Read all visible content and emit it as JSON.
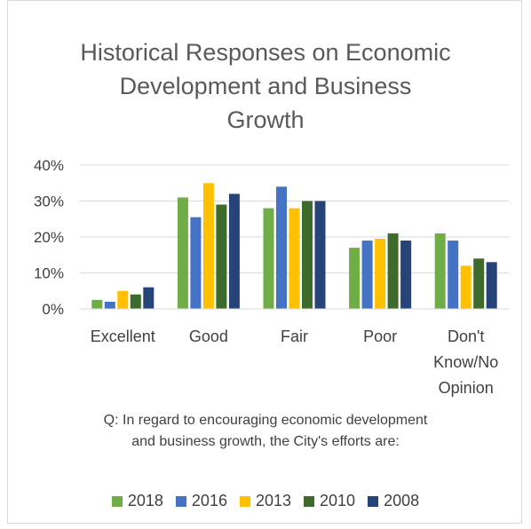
{
  "chart_data": {
    "type": "bar",
    "title": "Historical Responses on Economic\nDevelopment and Business\nGrowth",
    "categories": [
      "Excellent",
      "Good",
      "Fair",
      "Poor",
      "Don't\nKnow/No\nOpinion"
    ],
    "series": [
      {
        "name": "2018",
        "color": "#70ad47",
        "values": [
          2.5,
          31,
          28,
          17,
          21
        ]
      },
      {
        "name": "2016",
        "color": "#4472c4",
        "values": [
          2,
          25.5,
          34,
          19,
          19
        ]
      },
      {
        "name": "2013",
        "color": "#ffc000",
        "values": [
          5,
          35,
          28,
          19.5,
          12
        ]
      },
      {
        "name": "2010",
        "color": "#3e6b2b",
        "values": [
          4,
          29,
          30,
          21,
          14
        ]
      },
      {
        "name": "2008",
        "color": "#264478",
        "values": [
          6,
          32,
          30,
          19,
          13
        ]
      }
    ],
    "yticks": [
      "0%",
      "10%",
      "20%",
      "30%",
      "40%"
    ],
    "ylim": [
      0,
      40
    ],
    "grid": true,
    "legend_position": "bottom",
    "note": "Q: In regard to encouraging economic development\nand business growth, the City's efforts are:"
  }
}
